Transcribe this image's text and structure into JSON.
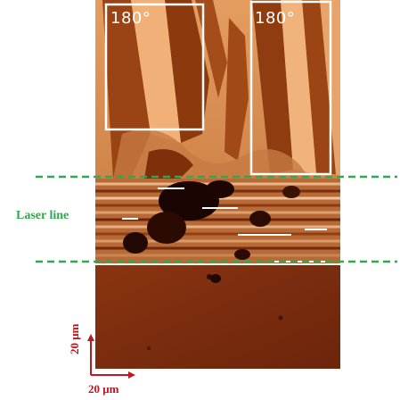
{
  "figure": {
    "box_labels": [
      "180°",
      "180°"
    ],
    "laser_label": "Laser line",
    "scale_bar": {
      "vertical_label": "20 μm",
      "horizontal_label": "20 μm"
    },
    "colors": {
      "laser_line": "#2fa84f",
      "scale_bar": "#c0161d",
      "box_outline": "#ffffff",
      "domain_light": "#f0b078",
      "domain_dark": "#8c3a0d",
      "lower_region": "#7a2c0e"
    }
  }
}
